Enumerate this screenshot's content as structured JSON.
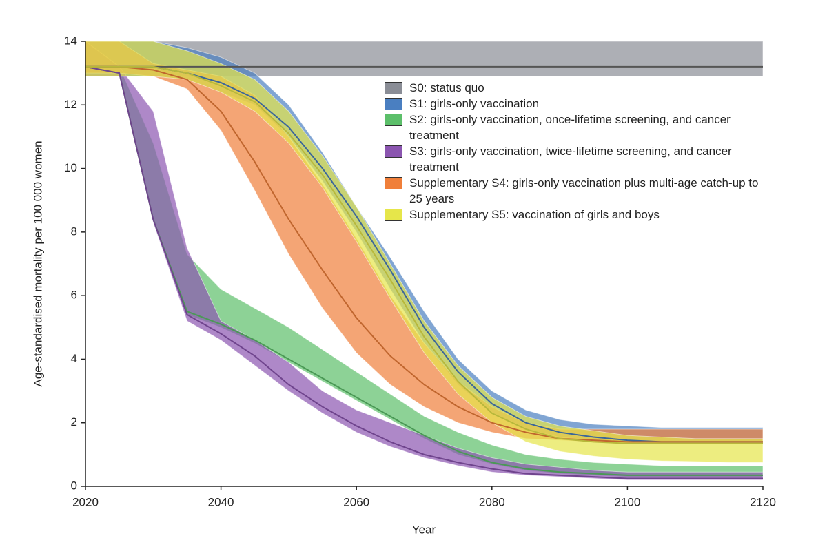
{
  "chart_data": {
    "type": "line",
    "xlabel": "Year",
    "ylabel": "Age-standardised mortality per 100 000 women",
    "x": [
      2020,
      2025,
      2030,
      2035,
      2040,
      2045,
      2050,
      2055,
      2060,
      2065,
      2070,
      2075,
      2080,
      2085,
      2090,
      2095,
      2100,
      2105,
      2110,
      2115,
      2120
    ],
    "xlim": [
      2020,
      2120
    ],
    "xticks": [
      2020,
      2040,
      2060,
      2080,
      2100,
      2120
    ],
    "ylim": [
      0,
      14
    ],
    "yticks": [
      0,
      2,
      4,
      6,
      8,
      10,
      12,
      14
    ],
    "series": [
      {
        "name": "S0: status quo",
        "color": "#8a8d96",
        "values": [
          13.2,
          13.2,
          13.2,
          13.2,
          13.2,
          13.2,
          13.2,
          13.2,
          13.2,
          13.2,
          13.2,
          13.2,
          13.2,
          13.2,
          13.2,
          13.2,
          13.2,
          13.2,
          13.2,
          13.2,
          13.2
        ],
        "lower": [
          12.9,
          12.9,
          12.9,
          12.9,
          12.9,
          12.9,
          12.9,
          12.9,
          12.9,
          12.9,
          12.9,
          12.9,
          12.9,
          12.9,
          12.9,
          12.9,
          12.9,
          12.9,
          12.9,
          12.9,
          12.9
        ],
        "upper": [
          14,
          14,
          14,
          14,
          14,
          14,
          14,
          14,
          14,
          14,
          14,
          14,
          14,
          14,
          14,
          14,
          14,
          14,
          14,
          14,
          14
        ]
      },
      {
        "name": "S1: girls-only vaccination",
        "color": "#4a7fc1",
        "values": [
          13.2,
          13.2,
          13.2,
          13,
          12.7,
          12.2,
          11.3,
          10,
          8.5,
          6.8,
          5,
          3.6,
          2.6,
          2,
          1.7,
          1.55,
          1.45,
          1.4,
          1.4,
          1.4,
          1.4
        ],
        "lower": [
          12.9,
          12.9,
          12.9,
          12.8,
          12.4,
          12,
          11,
          9.6,
          8,
          6.2,
          4.5,
          3.2,
          2.3,
          1.8,
          1.55,
          1.45,
          1.4,
          1.35,
          1.35,
          1.35,
          1.35
        ],
        "upper": [
          14,
          14,
          14,
          13.8,
          13.5,
          13,
          12,
          10.5,
          8.8,
          7.2,
          5.5,
          4,
          3,
          2.4,
          2.1,
          1.95,
          1.9,
          1.85,
          1.85,
          1.85,
          1.85
        ]
      },
      {
        "name": "S2: girls-only vaccination, once-lifetime screening, and cancer treatment",
        "color": "#5cbf6a",
        "values": [
          13.2,
          13,
          8.4,
          5.5,
          5.1,
          4.6,
          4,
          3.4,
          2.8,
          2.2,
          1.6,
          1.1,
          0.75,
          0.55,
          0.45,
          0.4,
          0.35,
          0.35,
          0.35,
          0.35,
          0.35
        ],
        "lower": [
          12.9,
          12.9,
          8.3,
          5.4,
          5,
          4.5,
          3.9,
          3.3,
          2.7,
          2.1,
          1.5,
          1,
          0.7,
          0.5,
          0.4,
          0.35,
          0.3,
          0.3,
          0.3,
          0.3,
          0.3
        ],
        "upper": [
          14,
          13.2,
          10.8,
          7.3,
          6.2,
          5.6,
          5,
          4.3,
          3.6,
          2.9,
          2.2,
          1.7,
          1.3,
          1,
          0.85,
          0.75,
          0.7,
          0.65,
          0.65,
          0.65,
          0.65
        ]
      },
      {
        "name": "S3: girls-only vaccination, twice-lifetime screening, and cancer treatment",
        "color": "#8b55b0",
        "values": [
          13.2,
          13,
          8.4,
          5.4,
          4.8,
          4.1,
          3.2,
          2.5,
          1.9,
          1.4,
          1,
          0.75,
          0.55,
          0.4,
          0.35,
          0.3,
          0.25,
          0.25,
          0.25,
          0.25,
          0.25
        ],
        "lower": [
          12.9,
          12.9,
          8.3,
          5.2,
          4.6,
          3.8,
          3,
          2.3,
          1.7,
          1.25,
          0.9,
          0.65,
          0.45,
          0.35,
          0.3,
          0.25,
          0.2,
          0.2,
          0.2,
          0.2,
          0.2
        ],
        "upper": [
          14,
          13.2,
          11.8,
          7.5,
          5.2,
          4.6,
          3.9,
          3,
          2.4,
          2,
          1.6,
          1.2,
          0.9,
          0.7,
          0.6,
          0.5,
          0.45,
          0.45,
          0.45,
          0.45,
          0.45
        ]
      },
      {
        "name": "Supplementary S4: girls-only vaccination plus multi-age catch-up to 25 years",
        "color": "#f07f3a",
        "values": [
          13.2,
          13.2,
          13.1,
          12.8,
          11.8,
          10.2,
          8.4,
          6.8,
          5.3,
          4.1,
          3.2,
          2.5,
          2,
          1.7,
          1.5,
          1.45,
          1.4,
          1.4,
          1.4,
          1.4,
          1.4
        ],
        "lower": [
          13,
          13,
          12.9,
          12.5,
          11.2,
          9.3,
          7.3,
          5.6,
          4.2,
          3.2,
          2.5,
          2,
          1.7,
          1.5,
          1.45,
          1.4,
          1.35,
          1.35,
          1.35,
          1.35,
          1.35
        ],
        "upper": [
          14,
          14,
          13.3,
          13.1,
          12.9,
          12.3,
          11,
          9.5,
          7.8,
          6,
          4.5,
          3.3,
          2.5,
          2,
          1.8,
          1.8,
          1.8,
          1.8,
          1.8,
          1.8,
          1.8
        ]
      },
      {
        "name": "Supplementary S5: vaccination of girls and boys",
        "color": "#e6e64a",
        "values": [
          13.2,
          13.2,
          13.2,
          13,
          12.6,
          12.1,
          11.1,
          9.8,
          8.2,
          6.5,
          4.7,
          3.3,
          2.3,
          1.8,
          1.5,
          1.4,
          1.35,
          1.35,
          1.35,
          1.35,
          1.35
        ],
        "lower": [
          12.9,
          12.9,
          12.9,
          12.8,
          12.4,
          11.8,
          10.8,
          9.4,
          7.7,
          5.9,
          4.2,
          2.9,
          2,
          1.4,
          1.1,
          0.95,
          0.85,
          0.8,
          0.78,
          0.75,
          0.75
        ],
        "upper": [
          14,
          14,
          14,
          13.7,
          13.3,
          12.8,
          11.8,
          10.4,
          8.8,
          7,
          5.2,
          3.8,
          2.8,
          2.2,
          1.9,
          1.75,
          1.6,
          1.55,
          1.5,
          1.5,
          1.5
        ]
      }
    ]
  }
}
